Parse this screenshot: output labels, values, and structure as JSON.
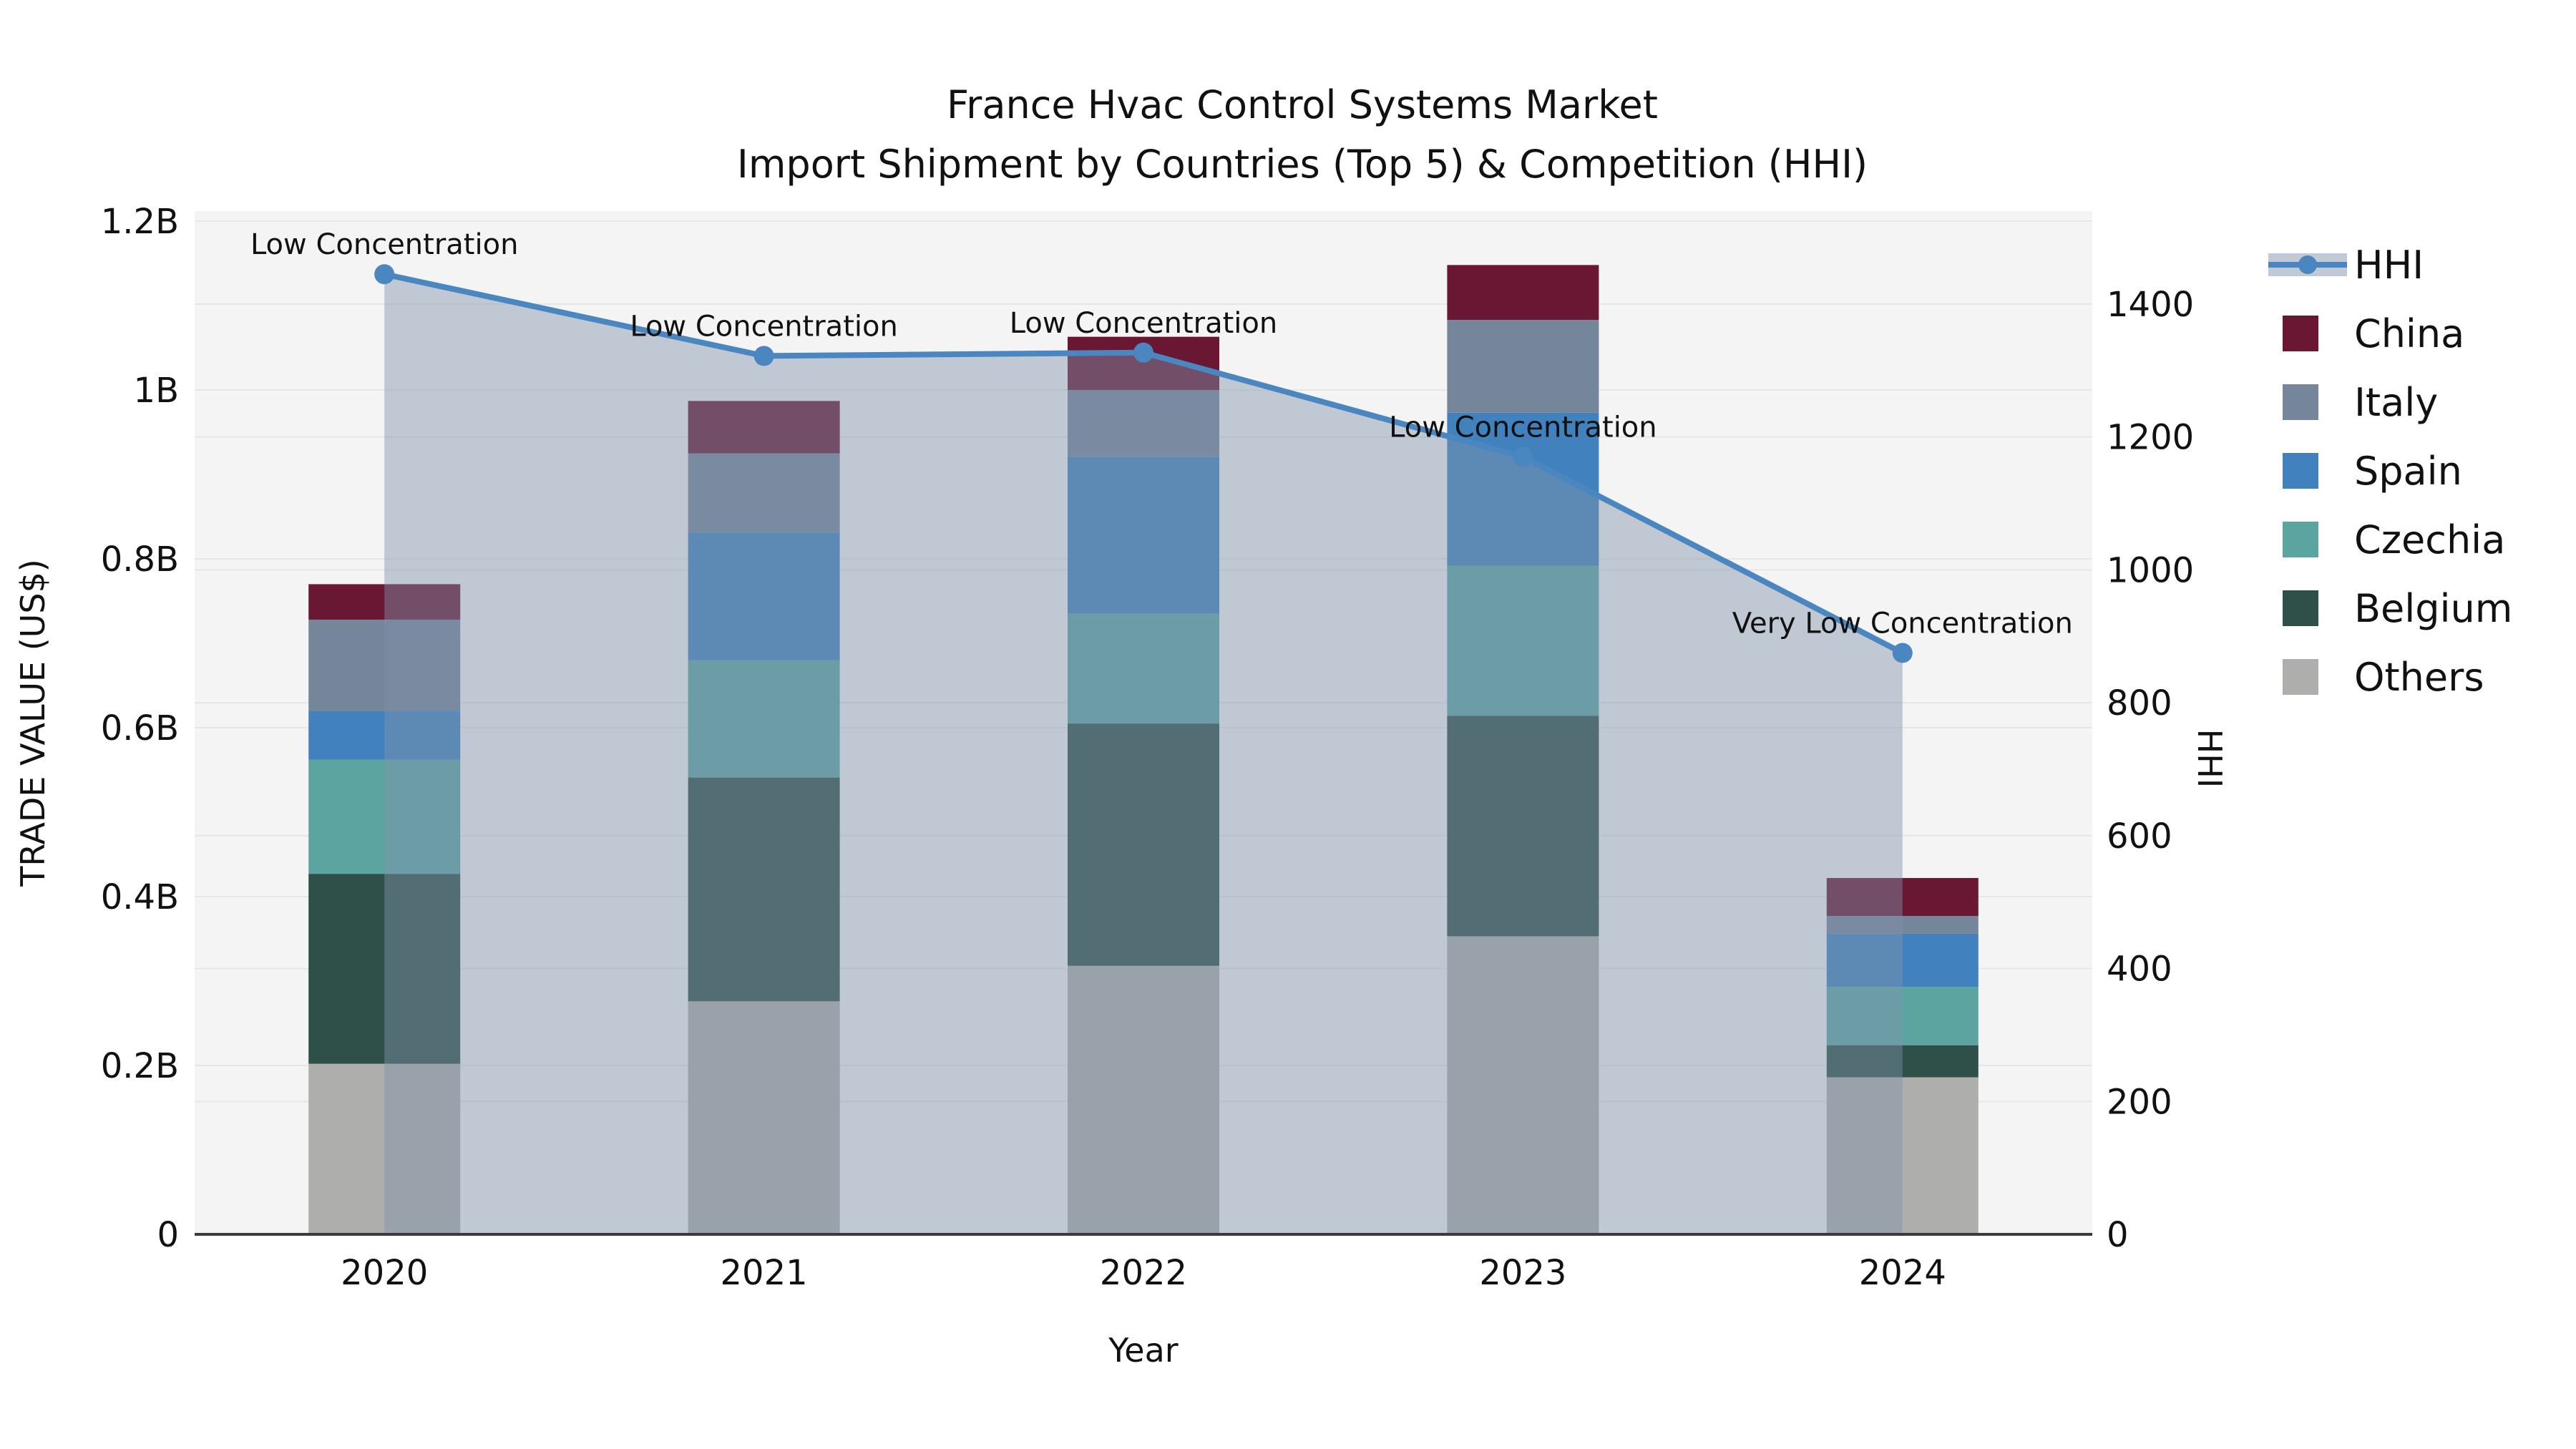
{
  "chart_data": {
    "type": "bar",
    "subtype": "stacked-bars-with-hhi-line-and-area",
    "title": "France Hvac Control Systems Market",
    "subtitle": "Import Shipment by Countries (Top 5) & Competition (HHI)",
    "xlabel": "Year",
    "ylabel_left": "TRADE VALUE (US$)",
    "ylabel_right": "HHI",
    "unit_left": "billions of US$",
    "categories": [
      "2020",
      "2021",
      "2022",
      "2023",
      "2024"
    ],
    "ylim_left_B": [
      0,
      1.2
    ],
    "ytick_values_left": [
      0,
      0.2,
      0.4,
      0.6,
      0.8,
      1.0,
      1.2
    ],
    "ytick_labels_left": [
      "0",
      "0.2B",
      "0.4B",
      "0.6B",
      "0.8B",
      "1B",
      "1.2B"
    ],
    "ylim_right": [
      0,
      1540
    ],
    "ytick_values_right": [
      0,
      200,
      400,
      600,
      800,
      1000,
      1200,
      1400
    ],
    "ytick_labels_right": [
      "0",
      "200",
      "400",
      "600",
      "800",
      "1000",
      "1200",
      "1400"
    ],
    "series_stack_bottom_to_top": [
      {
        "name": "Others",
        "color": "#aeafac",
        "values_B": [
          0.202,
          0.276,
          0.318,
          0.353,
          0.186
        ]
      },
      {
        "name": "Belgium",
        "color": "#2f4f49",
        "values_B": [
          0.225,
          0.265,
          0.287,
          0.261,
          0.038
        ]
      },
      {
        "name": "Czechia",
        "color": "#5ba4a0",
        "values_B": [
          0.135,
          0.139,
          0.13,
          0.178,
          0.069
        ]
      },
      {
        "name": "Spain",
        "color": "#4181be",
        "values_B": [
          0.058,
          0.151,
          0.186,
          0.181,
          0.063
        ]
      },
      {
        "name": "Italy",
        "color": "#76869a",
        "values_B": [
          0.108,
          0.094,
          0.079,
          0.11,
          0.021
        ]
      },
      {
        "name": "China",
        "color": "#691733",
        "values_B": [
          0.042,
          0.062,
          0.063,
          0.065,
          0.045
        ]
      }
    ],
    "bar_totals_B": [
      0.77,
      0.99,
      1.06,
      1.15,
      0.42
    ],
    "hhi_line": {
      "name": "HHI",
      "color": "#4a86c0",
      "area_fill_color": "#8193ab",
      "area_fill_opacity": 0.45,
      "values": [
        1445,
        1322,
        1327,
        1170,
        875
      ]
    },
    "annotations": [
      {
        "category": "2020",
        "text": "Low Concentration"
      },
      {
        "category": "2021",
        "text": "Low Concentration"
      },
      {
        "category": "2022",
        "text": "Low Concentration"
      },
      {
        "category": "2023",
        "text": "Low Concentration"
      },
      {
        "category": "2024",
        "text": "Very Low Concentration"
      }
    ],
    "legend_position": "right",
    "legend": [
      {
        "label": "HHI",
        "type": "line",
        "color": "#4a86c0"
      },
      {
        "label": "China",
        "type": "swatch",
        "color": "#691733"
      },
      {
        "label": "Italy",
        "type": "swatch",
        "color": "#76869a"
      },
      {
        "label": "Spain",
        "type": "swatch",
        "color": "#4181be"
      },
      {
        "label": "Czechia",
        "type": "swatch",
        "color": "#5ba4a0"
      },
      {
        "label": "Belgium",
        "type": "swatch",
        "color": "#2f4f49"
      },
      {
        "label": "Others",
        "type": "swatch",
        "color": "#aeafac"
      }
    ],
    "grid": true,
    "plot_background": "#f4f4f4",
    "gridline_color": "#e6e6e6",
    "axis_line_color": "#3a3a3a"
  }
}
